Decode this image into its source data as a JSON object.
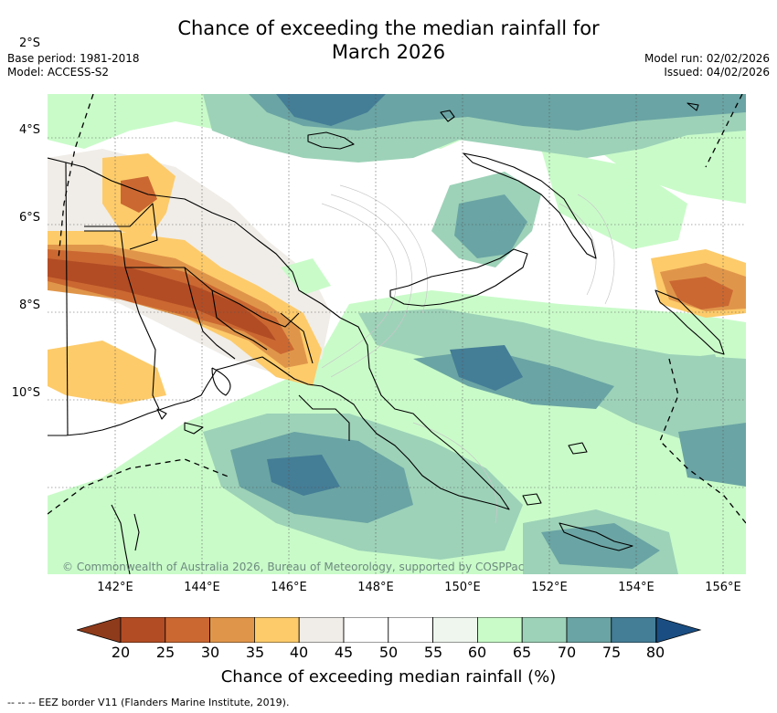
{
  "title_line1": "Chance of exceeding the median rainfall for",
  "title_line2": "March 2026",
  "base_period": "Base period: 1981-2018",
  "model": "Model: ACCESS-S2",
  "model_run": "Model run: 02/02/2026",
  "issued": "Issued: 04/02/2026",
  "map": {
    "lat_labels": [
      "2°S",
      "4°S",
      "6°S",
      "8°S",
      "10°S"
    ],
    "lon_labels": [
      "142°E",
      "144°E",
      "146°E",
      "148°E",
      "150°E",
      "152°E",
      "154°E",
      "156°E"
    ],
    "copyright": "© Commonwealth of Australia 2026, Bureau of Meteorology, supported by COSPPac"
  },
  "colorbar": {
    "ticks": [
      "20",
      "25",
      "30",
      "35",
      "40",
      "45",
      "50",
      "55",
      "60",
      "65",
      "70",
      "75",
      "80"
    ],
    "colors": [
      "#8e3b1c",
      "#b24c24",
      "#cb6832",
      "#e0964a",
      "#fdcb6a",
      "#f0ede8",
      "#ffffff",
      "#ffffff",
      "#eef6ee",
      "#c9fbc9",
      "#9dd2b8",
      "#6aa4a4",
      "#447d96",
      "#1a4e82"
    ],
    "label": "Chance of exceeding median rainfall (%)"
  },
  "legend": "--  --  -- EEZ border V11 (Flanders Marine Institute, 2019)."
}
